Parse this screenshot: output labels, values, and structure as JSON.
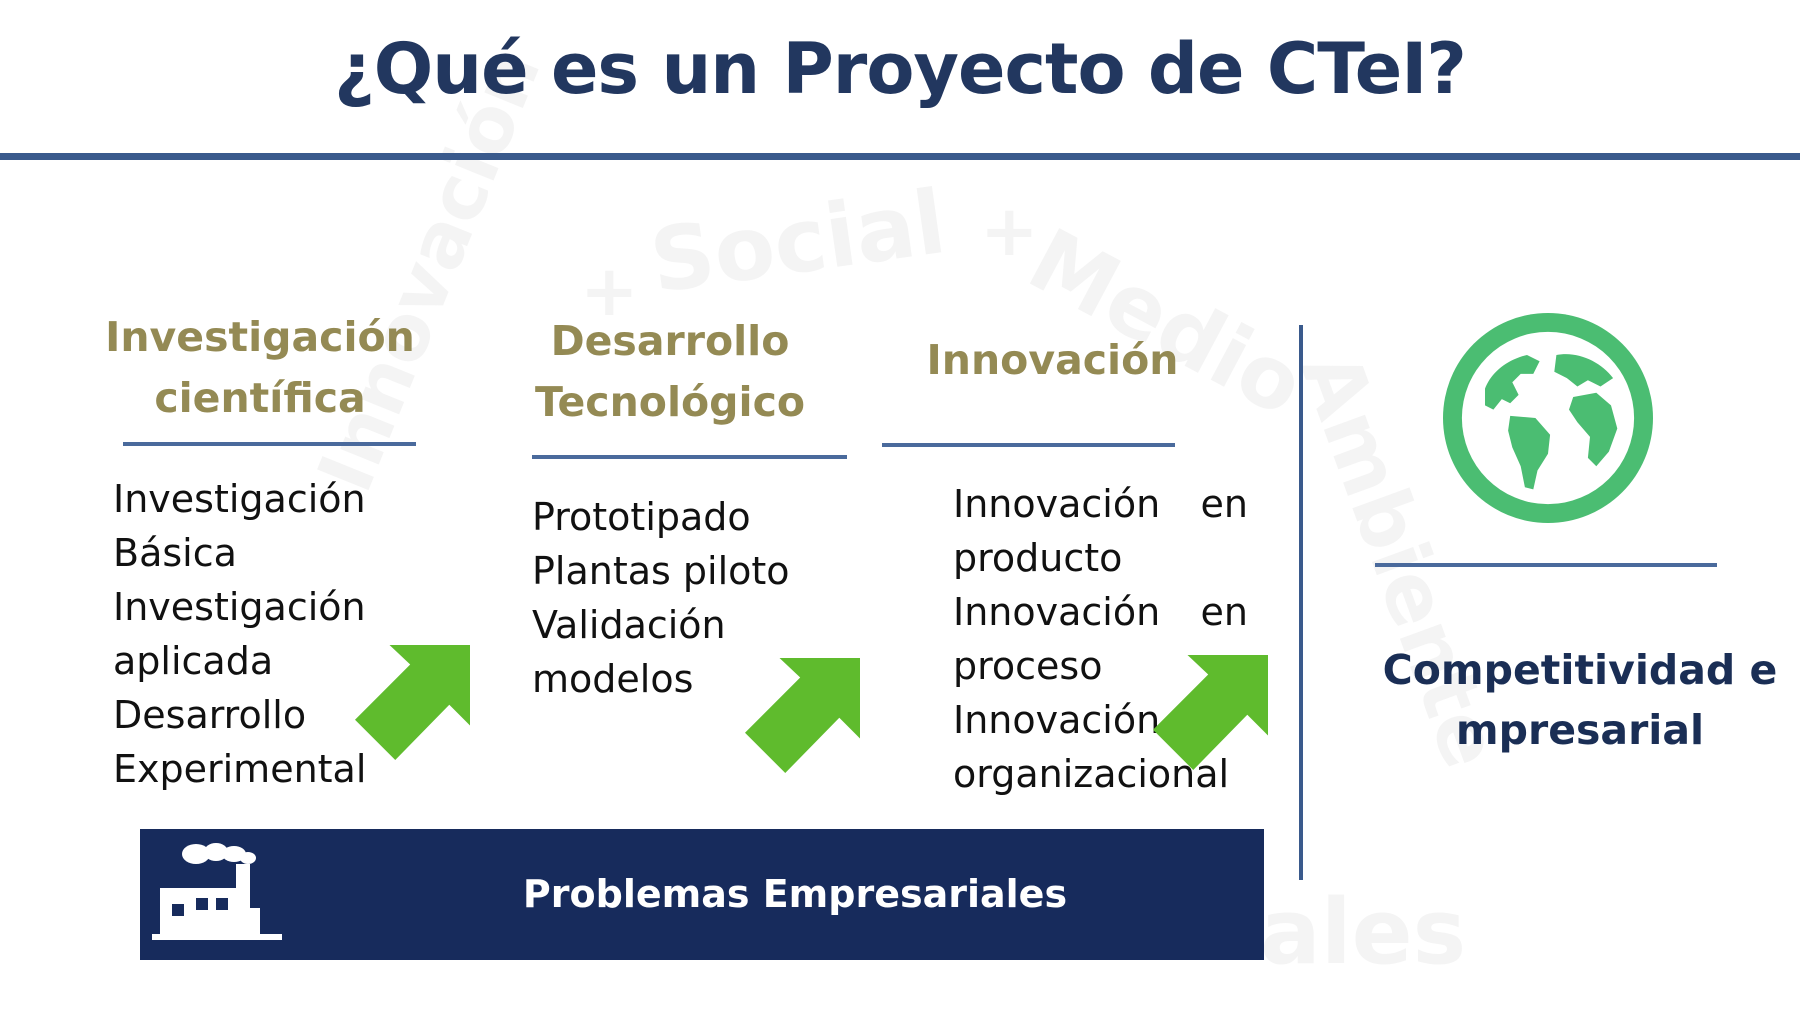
{
  "title": "¿Qué es un Proyecto de CTeI?",
  "watermark": {
    "arc_words": [
      "Innovación",
      "+",
      "Social",
      "+",
      "Medio",
      "Ambiente"
    ],
    "bottom_text": "ales"
  },
  "columns": [
    {
      "title_lines": [
        "Investigación",
        "científica"
      ],
      "items": [
        "Investigación",
        "Básica",
        "Investigación",
        "aplicada",
        "Desarrollo",
        "Experimental"
      ]
    },
    {
      "title_lines": [
        "Desarrollo",
        "Tecnológico"
      ],
      "items": [
        "Prototipado",
        "Plantas piloto",
        "Validación",
        "modelos"
      ]
    },
    {
      "title_lines": [
        "Innovación"
      ],
      "items": [
        {
          "a": "Innovación",
          "b": "en"
        },
        {
          "a": "producto"
        },
        {
          "a": "Innovación",
          "b": "en"
        },
        {
          "a": "proceso"
        },
        {
          "a": "Innovación"
        },
        {
          "a": "organizacional"
        }
      ]
    }
  ],
  "outcome": {
    "icon": "globe-icon",
    "lines": [
      "Competitividad e",
      "mpresarial"
    ]
  },
  "banner": {
    "icon": "factory-icon",
    "label": "Problemas Empresariales"
  },
  "colors": {
    "title": "#22375f",
    "column_title": "#948a54",
    "rule": "#4a6a9c",
    "arrow": "#5fbb2d",
    "globe": "#4bbd72",
    "banner": "#172b5c",
    "outcome": "#1a2e55"
  }
}
